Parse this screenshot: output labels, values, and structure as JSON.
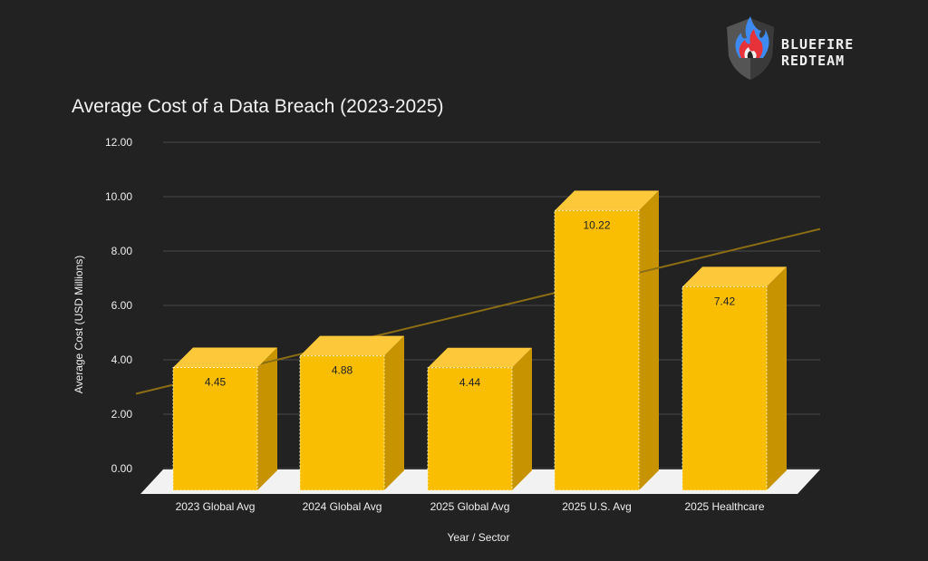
{
  "brand": {
    "line1": "BLUEFIRE",
    "line2": "REDTEAM"
  },
  "colors": {
    "bar_front": "#f9bd02",
    "bar_top": "#fdc93a",
    "bar_side": "#c79400",
    "trend": "#8a6d14",
    "grid": "#4a4a4a",
    "floor": "#f2f2f2"
  },
  "chart_data": {
    "type": "bar",
    "title": "Average Cost of a Data Breach (2023-2025)",
    "xlabel": "Year / Sector",
    "ylabel": "Average Cost (USD Millions)",
    "categories": [
      "2023 Global Avg",
      "2024 Global Avg",
      "2025 Global Avg",
      "2025 U.S. Avg",
      "2025 Healthcare"
    ],
    "values": [
      4.45,
      4.88,
      4.44,
      10.22,
      7.42
    ],
    "data_labels": [
      "4.45",
      "4.88",
      "4.44",
      "10.22",
      "7.42"
    ],
    "ylim": [
      0,
      12
    ],
    "yticks": [
      "0.00",
      "2.00",
      "4.00",
      "6.00",
      "8.00",
      "10.00",
      "12.00"
    ],
    "grid": true,
    "trendline": "linear"
  }
}
